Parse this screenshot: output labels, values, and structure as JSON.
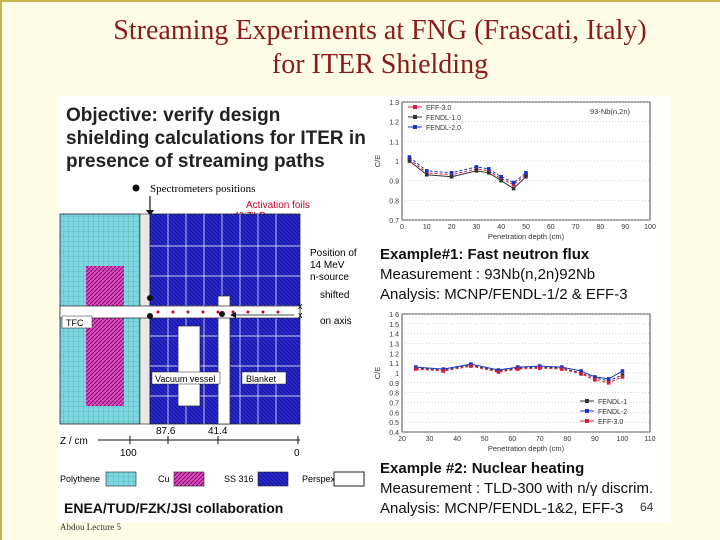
{
  "title_line1": "Streaming Experiments at FNG (Frascati, Italy)",
  "title_line2": "for ITER Shielding",
  "objective": "Objective: verify design shielding calculations for ITER in presence of streaming paths",
  "diagram": {
    "spectrometers": "Spectrometers positions",
    "activation_foils": "Activation foils",
    "tld": "& TLD",
    "position_of": "Position of",
    "source": "14 MeV",
    "n_source": "n-source",
    "shifted": "shifted",
    "on_axis": "on axis",
    "tfc": "TFC",
    "vacuum_vessel": "Vacuum vessel",
    "blanket": "Blanket",
    "z_label": "Z / cm",
    "z_876": "87.6",
    "z_414": "41.4",
    "z_100": "100",
    "z_0": "0",
    "legend": [
      "Polythene",
      "Cu",
      "SS 316",
      "Perspex"
    ]
  },
  "example1": {
    "heading": "Example#1: Fast neutron flux",
    "measurement": "Measurement : 93Nb(n,2n)92Nb",
    "analysis": "Analysis: MCNP/FENDL-1/2 & EFF-3"
  },
  "example2": {
    "heading": "Example #2: Nuclear heating",
    "measurement": "Measurement : TLD-300 with n/γ discrim.",
    "analysis": "Analysis: MCNP/FENDL-1&2, EFF-3"
  },
  "collaboration": "ENEA/TUD/FZK/JSI collaboration",
  "author": "Abdou Lecture 5",
  "page_number": "64",
  "chart_data": [
    {
      "type": "line",
      "annotation": "93-Nb(n,2n)",
      "xlabel": "Penetration depth (cm)",
      "ylabel": "C/E",
      "xlim": [
        0,
        100
      ],
      "ylim": [
        0.7,
        1.3
      ],
      "xticks": [
        0,
        10,
        20,
        30,
        40,
        50,
        60,
        70,
        80,
        90,
        100
      ],
      "yticks": [
        0.7,
        0.8,
        0.9,
        1.0,
        1.1,
        1.2,
        1.3
      ],
      "series": [
        {
          "name": "EFF-3.0",
          "color": "#d0203c",
          "x": [
            3,
            10,
            20,
            30,
            35,
            40,
            45,
            50
          ],
          "y": [
            1.01,
            0.94,
            0.93,
            0.96,
            0.95,
            0.91,
            0.88,
            0.93
          ]
        },
        {
          "name": "FENDL-1.0",
          "color": "#333333",
          "x": [
            3,
            10,
            20,
            30,
            35,
            40,
            45,
            50
          ],
          "y": [
            1.0,
            0.93,
            0.92,
            0.95,
            0.94,
            0.9,
            0.86,
            0.92
          ]
        },
        {
          "name": "FENDL-2.0",
          "color": "#1c33c9",
          "x": [
            3,
            10,
            20,
            30,
            35,
            40,
            45,
            50
          ],
          "y": [
            1.02,
            0.95,
            0.94,
            0.97,
            0.96,
            0.92,
            0.89,
            0.94
          ]
        }
      ]
    },
    {
      "type": "line",
      "xlabel": "Penetration depth (cm)",
      "ylabel": "C/E",
      "xlim": [
        20,
        110
      ],
      "ylim": [
        0.4,
        1.6
      ],
      "xticks": [
        20,
        30,
        40,
        50,
        60,
        70,
        80,
        90,
        100,
        110
      ],
      "yticks": [
        0.4,
        0.5,
        0.6,
        0.7,
        0.8,
        0.9,
        1.0,
        1.1,
        1.2,
        1.3,
        1.4,
        1.5,
        1.6
      ],
      "series": [
        {
          "name": "FENDL-1",
          "color": "#333333",
          "x": [
            25,
            35,
            45,
            55,
            62,
            70,
            78,
            85,
            90,
            95,
            100
          ],
          "y": [
            1.05,
            1.03,
            1.08,
            1.02,
            1.05,
            1.06,
            1.05,
            1.0,
            0.95,
            0.92,
            0.98
          ]
        },
        {
          "name": "FENDL-2",
          "color": "#1c33c9",
          "x": [
            25,
            35,
            45,
            55,
            62,
            70,
            78,
            85,
            90,
            95,
            100
          ],
          "y": [
            1.06,
            1.04,
            1.09,
            1.03,
            1.06,
            1.07,
            1.06,
            1.02,
            0.96,
            0.94,
            1.02
          ]
        },
        {
          "name": "EFF-3.0",
          "color": "#d0203c",
          "x": [
            25,
            35,
            45,
            55,
            62,
            70,
            78,
            85,
            90,
            95,
            100
          ],
          "y": [
            1.04,
            1.02,
            1.07,
            1.01,
            1.04,
            1.05,
            1.04,
            0.99,
            0.93,
            0.9,
            0.96
          ]
        }
      ]
    }
  ]
}
